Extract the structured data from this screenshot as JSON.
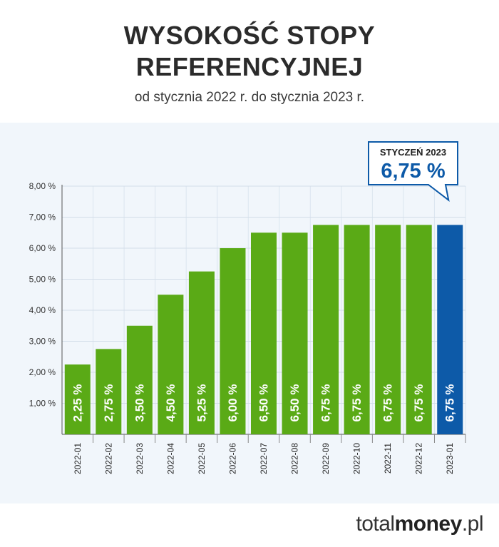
{
  "title_line1": "WYSOKOŚĆ STOPY",
  "title_line2": "REFERENCYJNEJ",
  "subtitle": "od stycznia 2022 r. do stycznia 2023 r.",
  "brand": {
    "prefix": "total",
    "bold": "money",
    "suffix": ".pl"
  },
  "callout": {
    "label": "STYCZEŃ 2023",
    "value": "6,75 %"
  },
  "colors": {
    "bar": "#5aaa16",
    "highlight": "#0d5aa8",
    "title": "#2b2b2b",
    "panel": "#f1f6fb"
  },
  "chart_data": {
    "type": "bar",
    "title": "WYSOKOŚĆ STOPY REFERENCYJNEJ",
    "subtitle": "od stycznia 2022 r. do stycznia 2023 r.",
    "categories": [
      "2022-01",
      "2022-02",
      "2022-03",
      "2022-04",
      "2022-05",
      "2022-06",
      "2022-07",
      "2022-08",
      "2022-09",
      "2022-10",
      "2022-11",
      "2022-12",
      "2023-01"
    ],
    "values": [
      2.25,
      2.75,
      3.5,
      4.5,
      5.25,
      6.0,
      6.5,
      6.5,
      6.75,
      6.75,
      6.75,
      6.75,
      6.75
    ],
    "value_labels": [
      "2,25 %",
      "2,75 %",
      "3,50 %",
      "4,50 %",
      "5,25 %",
      "6,00 %",
      "6,50 %",
      "6,50 %",
      "6,75 %",
      "6,75 %",
      "6,75 %",
      "6,75 %",
      "6,75 %"
    ],
    "yticks": [
      1,
      2,
      3,
      4,
      5,
      6,
      7,
      8
    ],
    "ytick_labels": [
      "1,00 %",
      "2,00 %",
      "3,00 %",
      "4,00 %",
      "5,00 %",
      "6,00 %",
      "7,00 %",
      "8,00 %"
    ],
    "ylim": [
      0,
      8
    ],
    "highlight_index": 12,
    "xlabel": "",
    "ylabel": "",
    "grid": true
  }
}
